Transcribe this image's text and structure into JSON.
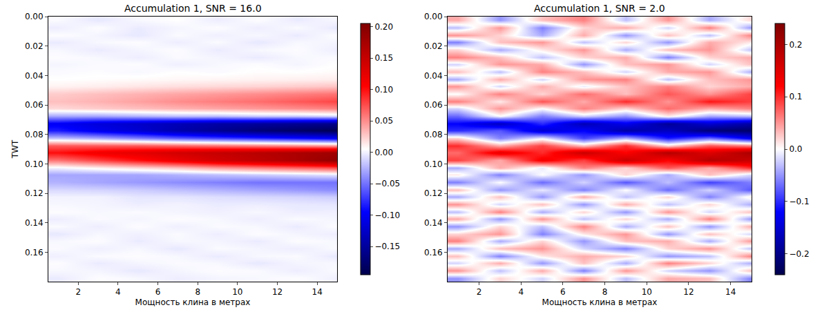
{
  "chart_data": [
    {
      "type": "heatmap",
      "title": "Accumulation 1, SNR = 16.0",
      "x_label": "Мощность клина в метрах",
      "y_label": "TWT",
      "xlim": [
        0.5,
        15
      ],
      "xticks": [
        2,
        4,
        6,
        8,
        10,
        12,
        14
      ],
      "ylim": [
        0,
        0.18
      ],
      "yticks": [
        {
          "value": 0,
          "label": "0.00"
        },
        0.02,
        0.04,
        0.06,
        0.08,
        {
          "value": 0.1,
          "label": "0.10"
        },
        0.12,
        0.14,
        0.16
      ],
      "zlim": [
        -0.195,
        0.205
      ],
      "colorbar_ticks": [
        {
          "value": -0.15,
          "label": "−0.15"
        },
        {
          "value": -0.1,
          "label": "−0.10"
        },
        {
          "value": -0.05,
          "label": "−0.05"
        },
        {
          "value": 0,
          "label": "0.00"
        },
        0.05,
        {
          "value": 0.1,
          "label": "0.10"
        },
        0.15,
        {
          "value": 0.2,
          "label": "0.20"
        }
      ],
      "x": [
        1,
        3,
        5,
        7,
        9,
        11,
        13,
        15
      ],
      "y": [
        0.0025,
        0.0075,
        0.0125,
        0.0175,
        0.0225,
        0.0275,
        0.0325,
        0.0375,
        0.0425,
        0.0475,
        0.0525,
        0.0575,
        0.0625,
        0.0675,
        0.0725,
        0.0775,
        0.0825,
        0.0875,
        0.0925,
        0.0975,
        0.1025,
        0.1075,
        0.1125,
        0.1175,
        0.1225,
        0.1275,
        0.1325,
        0.1375,
        0.1425,
        0.1475,
        0.1525,
        0.1575,
        0.1625,
        0.1675,
        0.1725,
        0.1775
      ],
      "z": [
        [
          0.003,
          -0.004,
          0.002,
          0.005,
          -0.002,
          0.004,
          -0.003,
          0.002
        ],
        [
          -0.002,
          0.004,
          -0.003,
          0.001,
          0.004,
          -0.002,
          0.003,
          -0.004
        ],
        [
          0.004,
          0.001,
          -0.004,
          0.003,
          -0.001,
          0.002,
          -0.003,
          0.004
        ],
        [
          -0.003,
          0.002,
          0.004,
          -0.002,
          0.003,
          -0.004,
          0.002,
          0.001
        ],
        [
          0.002,
          -0.003,
          0.001,
          0.004,
          -0.003,
          0.002,
          0.004,
          -0.002
        ],
        [
          0.004,
          0.002,
          -0.002,
          0.003,
          0.001,
          -0.003,
          0.002,
          0.003
        ],
        [
          0.001,
          0.003,
          0.004,
          -0.001,
          0.002,
          0.004,
          0.001,
          0.005
        ],
        [
          0.003,
          0.004,
          0.002,
          0.005,
          0.003,
          0.006,
          0.005,
          0.007
        ],
        [
          0.005,
          0.006,
          0.007,
          0.008,
          0.009,
          0.01,
          0.011,
          0.012
        ],
        [
          0.01,
          0.012,
          0.015,
          0.018,
          0.02,
          0.022,
          0.025,
          0.028
        ],
        [
          0.025,
          0.03,
          0.035,
          0.04,
          0.045,
          0.05,
          0.055,
          0.06
        ],
        [
          0.03,
          0.035,
          0.042,
          0.05,
          0.056,
          0.062,
          0.07,
          0.078
        ],
        [
          0.02,
          0.025,
          0.03,
          0.035,
          0.04,
          0.045,
          0.05,
          0.055
        ],
        [
          -0.03,
          -0.03,
          -0.025,
          -0.02,
          -0.02,
          -0.015,
          -0.015,
          -0.01
        ],
        [
          -0.1,
          -0.115,
          -0.125,
          -0.135,
          -0.145,
          -0.15,
          -0.155,
          -0.16
        ],
        [
          -0.085,
          -0.105,
          -0.12,
          -0.14,
          -0.155,
          -0.17,
          -0.18,
          -0.19
        ],
        [
          -0.02,
          -0.03,
          -0.045,
          -0.06,
          -0.07,
          -0.08,
          -0.09,
          -0.1
        ],
        [
          0.07,
          0.07,
          0.07,
          0.065,
          0.06,
          0.055,
          0.05,
          0.045
        ],
        [
          0.1,
          0.115,
          0.125,
          0.14,
          0.15,
          0.16,
          0.17,
          0.18
        ],
        [
          0.06,
          0.08,
          0.1,
          0.12,
          0.14,
          0.155,
          0.17,
          0.19
        ],
        [
          0.0,
          0.01,
          0.02,
          0.03,
          0.045,
          0.055,
          0.065,
          0.075
        ],
        [
          -0.03,
          -0.03,
          -0.03,
          -0.025,
          -0.02,
          -0.015,
          -0.01,
          -0.005
        ],
        [
          -0.025,
          -0.03,
          -0.035,
          -0.04,
          -0.045,
          -0.05,
          -0.05,
          -0.05
        ],
        [
          -0.01,
          -0.012,
          -0.015,
          -0.02,
          -0.025,
          -0.03,
          -0.035,
          -0.04
        ],
        [
          0.0,
          0.0,
          -0.005,
          -0.005,
          -0.008,
          -0.01,
          -0.012,
          -0.015
        ],
        [
          0.002,
          0.001,
          -0.002,
          0.0,
          -0.003,
          -0.002,
          -0.004,
          -0.005
        ],
        [
          0.004,
          0.002,
          0.003,
          0.001,
          -0.001,
          0.002,
          -0.002,
          -0.001
        ],
        [
          -0.002,
          0.003,
          0.001,
          0.004,
          0.002,
          -0.002,
          0.003,
          0.001
        ],
        [
          0.003,
          -0.002,
          0.004,
          -0.001,
          0.003,
          0.002,
          -0.003,
          0.004
        ],
        [
          -0.004,
          0.002,
          -0.001,
          0.003,
          -0.002,
          0.004,
          0.001,
          -0.002
        ],
        [
          0.002,
          0.004,
          -0.003,
          0.002,
          0.001,
          -0.003,
          0.004,
          0.002
        ],
        [
          0.003,
          -0.001,
          0.002,
          -0.004,
          0.003,
          0.001,
          -0.002,
          0.003
        ],
        [
          -0.001,
          0.003,
          0.004,
          0.002,
          -0.003,
          0.002,
          0.003,
          -0.004
        ],
        [
          0.004,
          -0.003,
          0.001,
          0.003,
          0.002,
          -0.004,
          0.001,
          0.002
        ],
        [
          0.002,
          0.001,
          -0.004,
          0.001,
          0.004,
          0.003,
          -0.002,
          0.003
        ],
        [
          -0.003,
          0.004,
          0.002,
          -0.002,
          0.001,
          0.002,
          0.004,
          -0.001
        ]
      ]
    },
    {
      "type": "heatmap",
      "title": "Accumulation 1, SNR = 2.0",
      "x_label": "Мощность клина в метрах",
      "xlim": [
        0.5,
        15
      ],
      "xticks": [
        2,
        4,
        6,
        8,
        10,
        12,
        14
      ],
      "ylim": [
        0,
        0.18
      ],
      "yticks": [
        {
          "value": 0,
          "label": "0.00"
        },
        0.02,
        0.04,
        0.06,
        0.08,
        {
          "value": 0.1,
          "label": "0.10"
        },
        0.12,
        0.14,
        0.16
      ],
      "zlim": [
        -0.24,
        0.24
      ],
      "colorbar_ticks": [
        {
          "value": -0.2,
          "label": "−0.2"
        },
        {
          "value": -0.1,
          "label": "−0.1"
        },
        {
          "value": 0,
          "label": "0.0"
        },
        0.1,
        0.2
      ],
      "x": [
        1,
        3,
        5,
        7,
        9,
        11,
        13,
        15
      ],
      "y": [
        0.0025,
        0.0075,
        0.0125,
        0.0175,
        0.0225,
        0.0275,
        0.0325,
        0.0375,
        0.0425,
        0.0475,
        0.0525,
        0.0575,
        0.0625,
        0.0675,
        0.0725,
        0.0775,
        0.0825,
        0.0875,
        0.0925,
        0.0975,
        0.1025,
        0.1075,
        0.1125,
        0.1175,
        0.1225,
        0.1275,
        0.1325,
        0.1375,
        0.1425,
        0.1475,
        0.1525,
        0.1575,
        0.1625,
        0.1675,
        0.1725,
        0.1775
      ],
      "z": [
        [
          0.04,
          -0.05,
          0.03,
          0.06,
          -0.03,
          0.05,
          -0.04,
          0.02
        ],
        [
          -0.03,
          0.05,
          -0.06,
          0.02,
          0.04,
          -0.02,
          0.06,
          -0.05
        ],
        [
          0.05,
          0.02,
          -0.04,
          0.04,
          -0.05,
          0.03,
          -0.03,
          0.06
        ],
        [
          -0.06,
          0.03,
          0.05,
          -0.03,
          0.02,
          -0.05,
          0.04,
          0.01
        ],
        [
          0.02,
          -0.04,
          0.01,
          0.05,
          -0.04,
          0.03,
          0.05,
          -0.03
        ],
        [
          0.06,
          0.03,
          -0.03,
          0.02,
          0.04,
          -0.06,
          0.02,
          0.04
        ],
        [
          -0.02,
          0.05,
          0.04,
          -0.05,
          0.03,
          0.05,
          -0.02,
          0.03
        ],
        [
          0.03,
          -0.03,
          0.06,
          0.03,
          -0.02,
          0.04,
          0.05,
          -0.04
        ],
        [
          -0.04,
          0.04,
          -0.02,
          0.05,
          0.06,
          -0.03,
          0.03,
          0.05
        ],
        [
          0.05,
          -0.02,
          0.04,
          -0.01,
          0.03,
          0.06,
          0.02,
          0.04
        ],
        [
          0.0,
          0.06,
          0.02,
          0.07,
          0.03,
          0.08,
          0.05,
          0.09
        ],
        [
          0.06,
          0.01,
          0.08,
          0.04,
          0.1,
          0.05,
          0.11,
          0.09
        ],
        [
          -0.02,
          0.05,
          0.0,
          0.06,
          0.02,
          0.07,
          0.04,
          0.06
        ],
        [
          -0.07,
          0.0,
          -0.06,
          -0.02,
          -0.05,
          0.01,
          -0.04,
          -0.03
        ],
        [
          -0.12,
          -0.16,
          -0.1,
          -0.17,
          -0.13,
          -0.19,
          -0.15,
          -0.18
        ],
        [
          -0.1,
          -0.08,
          -0.15,
          -0.12,
          -0.18,
          -0.16,
          -0.21,
          -0.22
        ],
        [
          0.02,
          -0.06,
          -0.01,
          -0.09,
          -0.04,
          -0.11,
          -0.07,
          -0.13
        ],
        [
          0.1,
          0.04,
          0.09,
          0.03,
          0.1,
          0.02,
          0.08,
          0.06
        ],
        [
          0.07,
          0.14,
          0.1,
          0.17,
          0.12,
          0.19,
          0.15,
          0.2
        ],
        [
          0.09,
          0.04,
          0.13,
          0.09,
          0.17,
          0.12,
          0.19,
          0.17
        ],
        [
          -0.04,
          0.04,
          -0.01,
          0.06,
          0.02,
          0.08,
          0.04,
          0.1
        ],
        [
          0.01,
          -0.06,
          0.0,
          -0.05,
          0.02,
          -0.04,
          0.03,
          -0.02
        ],
        [
          -0.06,
          0.0,
          -0.07,
          -0.02,
          -0.08,
          -0.03,
          -0.09,
          -0.06
        ],
        [
          0.03,
          -0.05,
          -0.01,
          -0.06,
          0.0,
          -0.07,
          -0.02,
          -0.08
        ],
        [
          -0.04,
          0.03,
          -0.05,
          0.04,
          -0.03,
          0.02,
          -0.06,
          0.01
        ],
        [
          0.05,
          -0.02,
          0.03,
          -0.05,
          0.04,
          -0.03,
          0.02,
          -0.04
        ],
        [
          -0.03,
          0.06,
          -0.04,
          0.02,
          -0.05,
          0.05,
          -0.02,
          0.03
        ],
        [
          0.04,
          -0.05,
          0.05,
          -0.03,
          0.02,
          -0.04,
          0.06,
          -0.05
        ],
        [
          -0.05,
          0.02,
          -0.03,
          0.06,
          -0.04,
          0.03,
          -0.05,
          0.04
        ],
        [
          0.02,
          0.05,
          -0.06,
          0.01,
          0.05,
          -0.05,
          0.03,
          -0.02
        ],
        [
          0.06,
          -0.04,
          0.02,
          -0.05,
          0.03,
          0.04,
          -0.04,
          0.05
        ],
        [
          -0.04,
          0.03,
          0.05,
          -0.02,
          -0.06,
          0.02,
          0.05,
          -0.03
        ],
        [
          0.03,
          -0.06,
          0.01,
          0.04,
          0.02,
          -0.05,
          -0.03,
          0.06
        ],
        [
          -0.02,
          0.04,
          -0.05,
          0.03,
          -0.04,
          0.06,
          0.02,
          -0.04
        ],
        [
          0.05,
          -0.03,
          0.04,
          -0.06,
          0.05,
          -0.02,
          -0.05,
          0.03
        ],
        [
          -0.05,
          0.02,
          -0.02,
          0.05,
          -0.03,
          0.04,
          0.03,
          -0.06
        ]
      ]
    }
  ]
}
